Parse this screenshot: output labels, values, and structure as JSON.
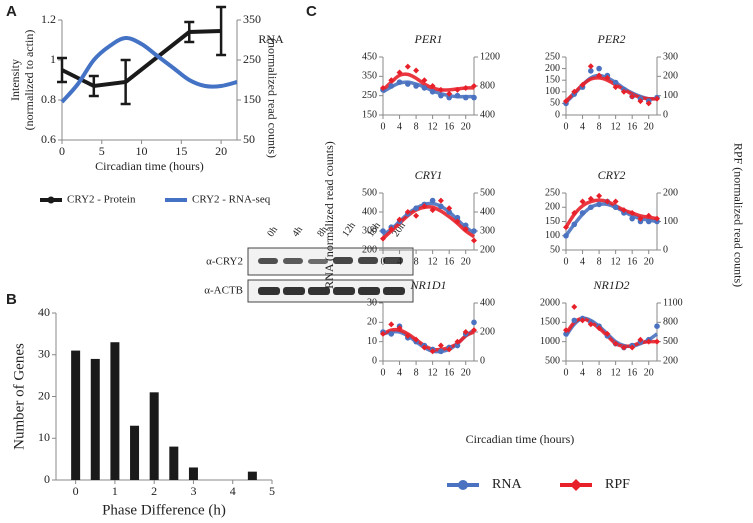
{
  "panels": [
    "A",
    "B",
    "C"
  ],
  "blot": {
    "lanes": [
      "0h",
      "4h",
      "8h",
      "12h",
      "16h",
      "20h"
    ],
    "rows": [
      "α-CRY2",
      "α-ACTB"
    ]
  },
  "panel_c": {
    "y_label": "RNA (normalized read counts)",
    "y2_label": "RPF (normalized read counts)",
    "x_label": "Circadian time (hours)"
  },
  "chart_data": [
    {
      "type": "line",
      "y_label": [
        "Intensity",
        "(normalized to actin)"
      ],
      "y2_label": [
        "RNA",
        "(normalized read counts)"
      ],
      "x_label": "Circadian time (hours)",
      "xlim": [
        0,
        22
      ],
      "xticks": [
        0,
        5,
        10,
        15,
        20
      ],
      "ylim": [
        0.6,
        1.2
      ],
      "yticks": [
        0.6,
        0.8,
        1,
        1.2
      ],
      "y2lim": [
        50,
        350
      ],
      "y2ticks": [
        50,
        150,
        250,
        350
      ],
      "series": [
        {
          "name": "CRY2 - Protein",
          "color": "#1a1a1a",
          "x": [
            0,
            4,
            8,
            16,
            20
          ],
          "values": [
            0.95,
            0.87,
            0.89,
            1.14,
            1.145
          ],
          "errors": [
            0.06,
            0.05,
            0.11,
            0.05,
            0.12
          ]
        },
        {
          "name": "CRY2 - RNA-seq",
          "color": "#4472c4",
          "axis": "y2",
          "x": [
            0,
            2,
            4,
            6,
            8,
            10,
            12,
            14,
            16,
            18,
            20,
            22
          ],
          "values": [
            145,
            190,
            250,
            285,
            305,
            290,
            260,
            230,
            200,
            185,
            185,
            195
          ]
        }
      ]
    },
    {
      "type": "bar",
      "y_label": "Number of Genes",
      "x_label": "Phase Difference (h)",
      "color": "#1a1a1a",
      "x": [
        0,
        0.5,
        1,
        1.5,
        2,
        2.5,
        3,
        4.5
      ],
      "values": [
        31,
        29,
        33,
        13,
        21,
        8,
        3,
        2
      ],
      "xlim": [
        -0.5,
        5
      ],
      "xticks": [
        0,
        1,
        2,
        3,
        4,
        5
      ],
      "ylim": [
        0,
        40
      ],
      "yticks": [
        0,
        10,
        20,
        30,
        40
      ]
    },
    {
      "type": "scatter",
      "title": "PER1",
      "x": [
        0,
        2,
        4,
        6,
        8,
        10,
        12,
        14,
        16,
        18,
        20,
        22
      ],
      "xlim": [
        0,
        22
      ],
      "xticks": [
        0,
        4,
        8,
        12,
        16,
        20
      ],
      "ylim": [
        150,
        450
      ],
      "yticks": [
        150,
        250,
        350,
        450
      ],
      "y2lim": [
        400,
        1200
      ],
      "y2ticks": [
        400,
        800,
        1200
      ],
      "series": [
        {
          "name": "RNA",
          "color": "#4a72c0",
          "marker": "circle",
          "values": [
            280,
            300,
            320,
            310,
            300,
            290,
            270,
            250,
            240,
            250,
            240,
            240
          ],
          "fit": [
            270,
            295,
            315,
            320,
            310,
            295,
            275,
            260,
            250,
            245,
            245,
            245
          ]
        },
        {
          "name": "RPF",
          "color": "#e8202a",
          "marker": "diamond",
          "axis": "y2",
          "values": [
            773,
            880,
            987,
            1067,
            1013,
            880,
            800,
            747,
            693,
            747,
            773,
            800
          ],
          "fit": [
            747,
            853,
            947,
            960,
            907,
            827,
            773,
            747,
            747,
            760,
            773,
            773
          ]
        }
      ]
    },
    {
      "type": "scatter",
      "title": "PER2",
      "x": [
        0,
        2,
        4,
        6,
        8,
        10,
        12,
        14,
        16,
        18,
        20,
        22
      ],
      "xlim": [
        0,
        22
      ],
      "xticks": [
        0,
        4,
        8,
        12,
        16,
        20
      ],
      "ylim": [
        0,
        250
      ],
      "yticks": [
        0,
        50,
        100,
        150,
        200,
        250
      ],
      "y2lim": [
        0,
        300
      ],
      "y2ticks": [
        0,
        100,
        200,
        300
      ],
      "series": [
        {
          "name": "RNA",
          "color": "#4a72c0",
          "marker": "circle",
          "values": [
            50,
            90,
            120,
            190,
            200,
            170,
            140,
            110,
            80,
            70,
            60,
            75
          ],
          "fit": [
            55,
            90,
            130,
            160,
            170,
            160,
            140,
            115,
            95,
            80,
            70,
            70
          ]
        },
        {
          "name": "RPF",
          "color": "#e8202a",
          "marker": "diamond",
          "axis": "y2",
          "values": [
            72,
            120,
            156,
            252,
            204,
            192,
            144,
            120,
            96,
            72,
            60,
            84
          ],
          "fit": [
            72,
            114,
            156,
            186,
            192,
            180,
            156,
            132,
            108,
            90,
            84,
            84
          ]
        }
      ]
    },
    {
      "type": "scatter",
      "title": "CRY1",
      "x": [
        0,
        2,
        4,
        6,
        8,
        10,
        12,
        14,
        16,
        18,
        20,
        22
      ],
      "xlim": [
        0,
        22
      ],
      "xticks": [
        0,
        4,
        8,
        12,
        16,
        20
      ],
      "ylim": [
        200,
        500
      ],
      "yticks": [
        200,
        300,
        400,
        500
      ],
      "y2lim": [
        200,
        500
      ],
      "y2ticks": [
        200,
        300,
        400,
        500
      ],
      "series": [
        {
          "name": "RNA",
          "color": "#4a72c0",
          "marker": "circle",
          "values": [
            300,
            320,
            350,
            390,
            420,
            440,
            460,
            430,
            400,
            370,
            330,
            300
          ],
          "fit": [
            280,
            310,
            350,
            390,
            420,
            440,
            445,
            430,
            400,
            360,
            320,
            290
          ]
        },
        {
          "name": "RPF",
          "color": "#e8202a",
          "marker": "diamond",
          "axis": "y2",
          "values": [
            260,
            310,
            360,
            400,
            380,
            430,
            410,
            460,
            420,
            350,
            310,
            250
          ],
          "fit": [
            260,
            300,
            340,
            380,
            410,
            425,
            425,
            405,
            375,
            340,
            300,
            270
          ]
        }
      ]
    },
    {
      "type": "scatter",
      "title": "CRY2",
      "x": [
        0,
        2,
        4,
        6,
        8,
        10,
        12,
        14,
        16,
        18,
        20,
        22
      ],
      "xlim": [
        0,
        22
      ],
      "xticks": [
        0,
        4,
        8,
        12,
        16,
        20
      ],
      "ylim": [
        50,
        250
      ],
      "yticks": [
        50,
        100,
        150,
        200,
        250
      ],
      "y2lim": [
        0,
        200
      ],
      "y2ticks": [
        0,
        100,
        200
      ],
      "series": [
        {
          "name": "RNA",
          "color": "#4a72c0",
          "marker": "circle",
          "values": [
            100,
            140,
            180,
            200,
            210,
            220,
            200,
            180,
            160,
            150,
            150,
            150
          ],
          "fit": [
            100,
            140,
            175,
            200,
            210,
            210,
            200,
            185,
            170,
            160,
            155,
            150
          ]
        },
        {
          "name": "RPF",
          "color": "#e8202a",
          "marker": "diamond",
          "axis": "y2",
          "values": [
            80,
            130,
            170,
            180,
            190,
            170,
            170,
            140,
            130,
            110,
            120,
            110
          ],
          "fit": [
            80,
            125,
            155,
            170,
            175,
            170,
            155,
            140,
            130,
            120,
            115,
            110
          ]
        }
      ]
    },
    {
      "type": "scatter",
      "title": "NR1D1",
      "x": [
        0,
        2,
        4,
        6,
        8,
        10,
        12,
        14,
        16,
        18,
        20,
        22
      ],
      "xlim": [
        0,
        22
      ],
      "xticks": [
        0,
        4,
        8,
        12,
        16,
        20
      ],
      "ylim": [
        0,
        30
      ],
      "yticks": [
        0,
        10,
        20,
        30
      ],
      "y2lim": [
        0,
        400
      ],
      "y2ticks": [
        0,
        200,
        400
      ],
      "series": [
        {
          "name": "RNA",
          "color": "#4a72c0",
          "marker": "circle",
          "values": [
            15,
            14,
            18,
            12,
            10,
            8,
            6,
            5,
            7,
            8,
            14,
            20
          ],
          "fit": [
            14,
            15,
            15,
            13,
            10,
            7,
            5,
            5,
            6,
            9,
            13,
            16
          ]
        },
        {
          "name": "RPF",
          "color": "#e8202a",
          "marker": "diamond",
          "axis": "y2",
          "values": [
            187,
            253,
            227,
            173,
            147,
            93,
            67,
            107,
            80,
            133,
            200,
            213
          ],
          "fit": [
            187,
            213,
            213,
            187,
            147,
            107,
            80,
            80,
            93,
            120,
            173,
            200
          ]
        }
      ]
    },
    {
      "type": "scatter",
      "title": "NR1D2",
      "x": [
        0,
        2,
        4,
        6,
        8,
        10,
        12,
        14,
        16,
        18,
        20,
        22
      ],
      "xlim": [
        0,
        22
      ],
      "xticks": [
        0,
        4,
        8,
        12,
        16,
        20
      ],
      "ylim": [
        500,
        2000
      ],
      "yticks": [
        500,
        1000,
        1500,
        2000
      ],
      "y2lim": [
        200,
        1100
      ],
      "y2ticks": [
        200,
        500,
        800,
        1100
      ],
      "series": [
        {
          "name": "RNA",
          "color": "#4a72c0",
          "marker": "circle",
          "values": [
            1200,
            1550,
            1600,
            1500,
            1400,
            1150,
            950,
            850,
            900,
            1000,
            1050,
            1400
          ],
          "fit": [
            1150,
            1450,
            1600,
            1550,
            1400,
            1200,
            1000,
            900,
            880,
            950,
            1050,
            1200
          ]
        },
        {
          "name": "RPF",
          "color": "#e8202a",
          "marker": "diamond",
          "axis": "y2",
          "values": [
            680,
            1040,
            830,
            770,
            710,
            620,
            470,
            410,
            410,
            530,
            500,
            500
          ],
          "fit": [
            620,
            800,
            860,
            800,
            710,
            590,
            470,
            428,
            440,
            482,
            500,
            500
          ]
        }
      ]
    }
  ]
}
